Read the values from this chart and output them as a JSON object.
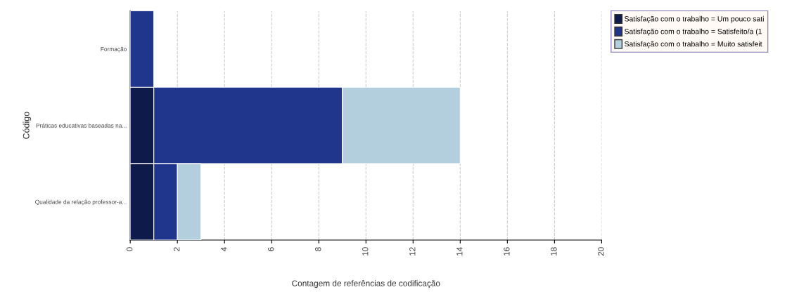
{
  "chart_data": {
    "type": "bar",
    "orientation": "horizontal",
    "stacked": true,
    "xlabel": "Contagem de referências de codificação",
    "ylabel": "Código",
    "categories": [
      "Formação",
      "Práticas educativas baseadas na...",
      "Qualidade da relação professor-a..."
    ],
    "series": [
      {
        "name": "Satisfação com o trabalho = Um pouco sati",
        "color": "#0e1a4a",
        "values": [
          0,
          1,
          1
        ]
      },
      {
        "name": "Satisfação com o trabalho = Satisfeito/a (1",
        "color": "#20368c",
        "values": [
          1,
          8,
          1
        ]
      },
      {
        "name": "Satisfação com o trabalho = Muito satisfeit",
        "color": "#b3cedc",
        "values": [
          0,
          5,
          1
        ]
      }
    ],
    "xlim": [
      0,
      20
    ],
    "xticks": [
      0,
      2,
      4,
      6,
      8,
      10,
      12,
      14,
      16,
      18,
      20
    ],
    "grid": "x",
    "legend": "right"
  }
}
